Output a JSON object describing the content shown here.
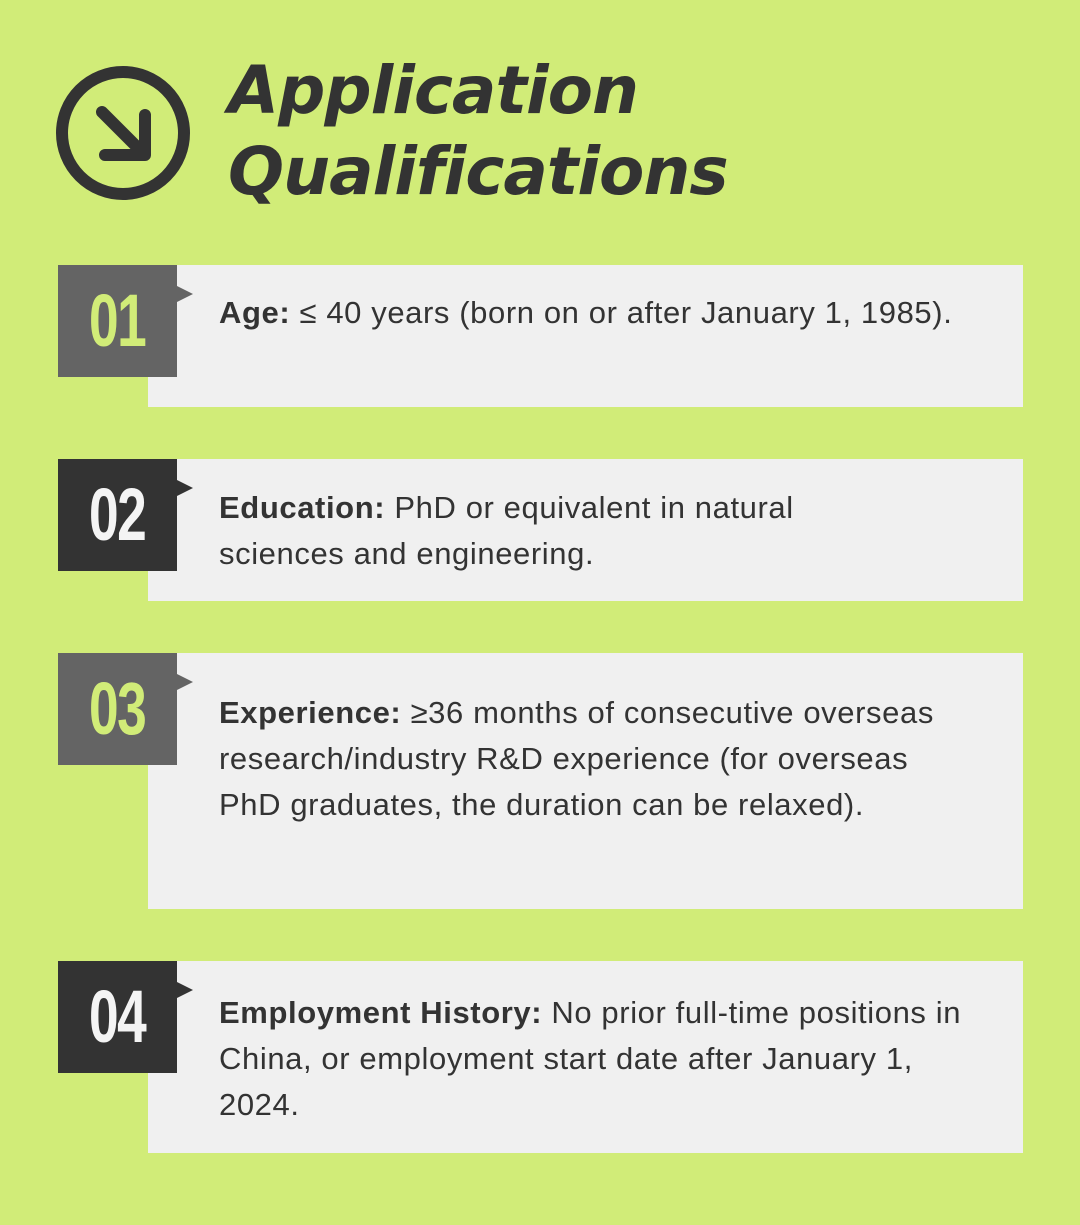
{
  "header": {
    "icon": "arrow-down-right-circle-icon",
    "title_line1": "Application",
    "title_line2": "Qualifications"
  },
  "colors": {
    "background": "#d1ec78",
    "dark": "#333333",
    "gray": "#646464",
    "card": "#f0f0f0"
  },
  "items": [
    {
      "number": "01",
      "label": "Age:",
      "text": " ≤ 40 years (born on or after January 1, 1985)."
    },
    {
      "number": "02",
      "label": "Education:",
      "text": " PhD or equivalent in natural sciences and engineering."
    },
    {
      "number": "03",
      "label": "Experience:",
      "text": " ≥36 months of consecutive overseas research/industry R&D experience (for overseas PhD graduates, the duration can be relaxed)."
    },
    {
      "number": "04",
      "label": "Employment History:",
      "text": " No prior full-time positions in China, or employment start date after January 1, 2024."
    }
  ]
}
